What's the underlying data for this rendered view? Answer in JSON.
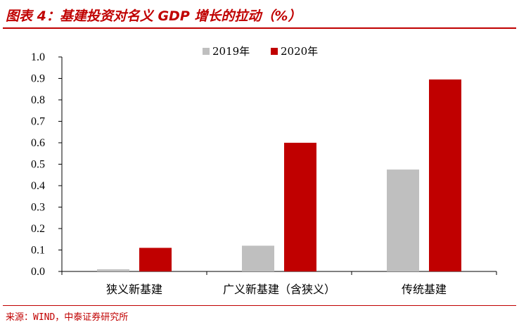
{
  "header": {
    "title": "图表 4：基建投资对名义 GDP 增长的拉动（%）"
  },
  "footer": {
    "source": "来源：WIND，中泰证券研究所"
  },
  "colors": {
    "accent": "#c00000",
    "series_2019": "#bfbfbf",
    "series_2020": "#c00000"
  },
  "chart_data": {
    "type": "bar",
    "categories": [
      "狭义新基建",
      "广义新基建（含狭义）",
      "传统基建"
    ],
    "series": [
      {
        "name": "2019年",
        "values": [
          0.01,
          0.12,
          0.475
        ]
      },
      {
        "name": "2020年",
        "values": [
          0.11,
          0.6,
          0.895
        ]
      }
    ],
    "ylim": [
      0,
      1.0
    ],
    "yticks": [
      "0.0",
      "0.1",
      "0.2",
      "0.3",
      "0.4",
      "0.5",
      "0.6",
      "0.7",
      "0.8",
      "0.9",
      "1.0"
    ],
    "legend_position": "top-center",
    "grid": false
  }
}
